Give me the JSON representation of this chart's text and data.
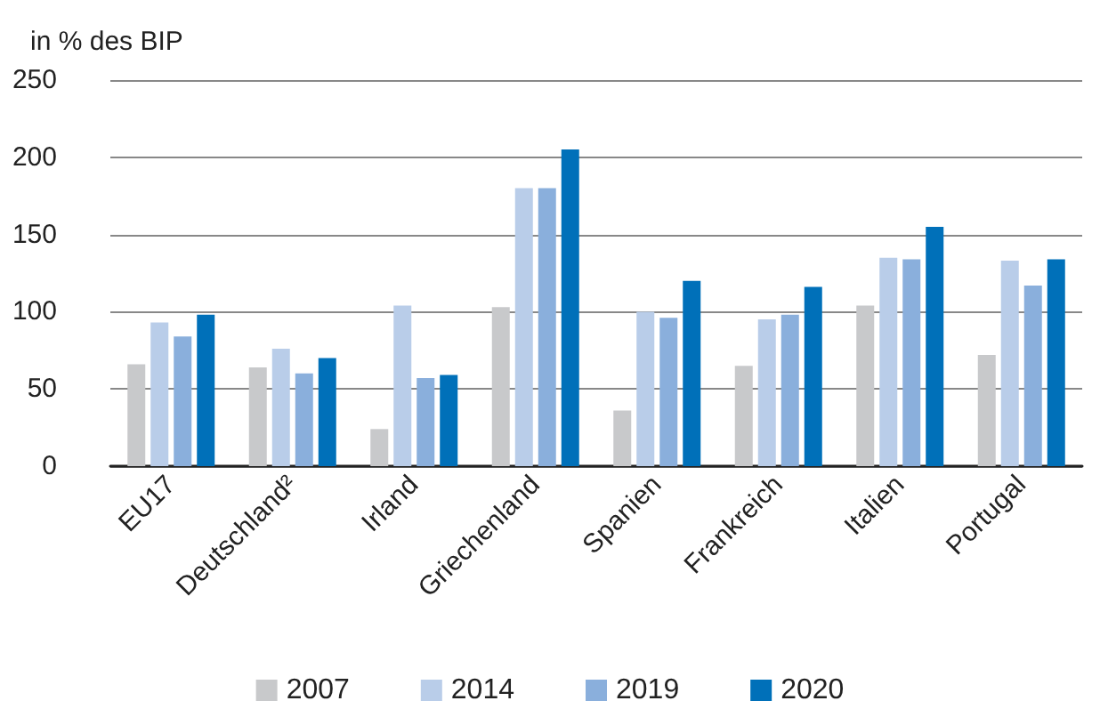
{
  "chart_data": {
    "type": "bar",
    "ylabel": "in % des BIP",
    "categories": [
      "EU17",
      "Deutschland²",
      "Irland",
      "Griechenland",
      "Spanien",
      "Frankreich",
      "Italien",
      "Portugal"
    ],
    "series": [
      {
        "name": "2007",
        "color": "#c8c9cb",
        "values": [
          66,
          64,
          24,
          103,
          36,
          65,
          104,
          72
        ]
      },
      {
        "name": "2014",
        "color": "#b9cde9",
        "values": [
          93,
          76,
          104,
          180,
          100,
          95,
          135,
          133
        ]
      },
      {
        "name": "2019",
        "color": "#8aafdc",
        "values": [
          84,
          60,
          57,
          180,
          96,
          98,
          134,
          117
        ]
      },
      {
        "name": "2020",
        "color": "#0070b9",
        "values": [
          98,
          70,
          59,
          205,
          120,
          116,
          155,
          134
        ]
      }
    ],
    "ylim": [
      0,
      250
    ],
    "yticks": [
      0,
      50,
      100,
      150,
      200,
      250
    ],
    "grid": "y",
    "legend": "bottom"
  }
}
